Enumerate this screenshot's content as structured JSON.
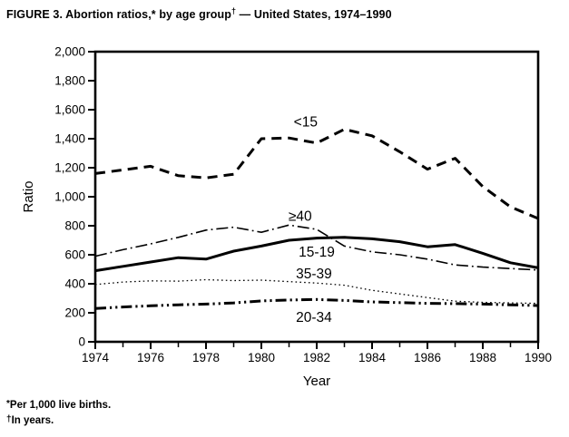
{
  "figure": {
    "title_before_sup": "FIGURE 3. Abortion ratios,* by age group",
    "title_sup": "†",
    "title_after_sup": " — United States, 1974–1990"
  },
  "footnotes": [
    {
      "marker": "*",
      "text": "Per 1,000 live births."
    },
    {
      "marker": "†",
      "text": "In years."
    }
  ],
  "chart_data": {
    "type": "line",
    "xlabel": "Year",
    "ylabel": "Ratio",
    "xlim": [
      1974,
      1990
    ],
    "ylim": [
      0,
      2000
    ],
    "grid": false,
    "legend_position": "inline-labels",
    "line_color": "#000000",
    "x": [
      1974,
      1975,
      1976,
      1977,
      1978,
      1979,
      1980,
      1981,
      1982,
      1983,
      1984,
      1985,
      1986,
      1987,
      1988,
      1989,
      1990
    ],
    "xtick_labels": [
      "1974",
      "1976",
      "1978",
      "1980",
      "1982",
      "1984",
      "1986",
      "1988",
      "1990"
    ],
    "xtick_values": [
      1974,
      1976,
      1978,
      1980,
      1982,
      1984,
      1986,
      1988,
      1990
    ],
    "ytick_labels": [
      "0",
      "200",
      "400",
      "600",
      "800",
      "1,000",
      "1,200",
      "1,400",
      "1,600",
      "1,800",
      "2,000"
    ],
    "ytick_values": [
      0,
      200,
      400,
      600,
      800,
      1000,
      1200,
      1400,
      1600,
      1800,
      2000
    ],
    "series": [
      {
        "name": "<15",
        "style": "dashed",
        "values": [
          1160,
          1185,
          1210,
          1145,
          1130,
          1155,
          1400,
          1405,
          1370,
          1465,
          1420,
          1310,
          1190,
          1265,
          1070,
          930,
          850
        ],
        "label": {
          "x": 1981.6,
          "y": 1515
        }
      },
      {
        "name": "≥40",
        "style": "dash-dot",
        "values": [
          590,
          635,
          675,
          720,
          770,
          790,
          755,
          805,
          775,
          660,
          620,
          600,
          570,
          530,
          515,
          505,
          495
        ],
        "label": {
          "x": 1981.4,
          "y": 865
        }
      },
      {
        "name": "15-19",
        "style": "solid-thick",
        "values": [
          490,
          520,
          550,
          580,
          570,
          625,
          660,
          700,
          715,
          720,
          710,
          690,
          655,
          670,
          610,
          545,
          510
        ],
        "label": {
          "x": 1982.0,
          "y": 618
        }
      },
      {
        "name": "35-39",
        "style": "dotted",
        "values": [
          395,
          412,
          420,
          418,
          428,
          422,
          425,
          415,
          405,
          390,
          355,
          330,
          305,
          280,
          272,
          268,
          265
        ],
        "label": {
          "x": 1981.9,
          "y": 468
        }
      },
      {
        "name": "20-34",
        "style": "dash-dot-dot",
        "values": [
          230,
          240,
          248,
          255,
          260,
          268,
          282,
          288,
          292,
          285,
          275,
          270,
          265,
          263,
          260,
          255,
          250
        ],
        "label": {
          "x": 1981.9,
          "y": 168
        }
      }
    ]
  }
}
